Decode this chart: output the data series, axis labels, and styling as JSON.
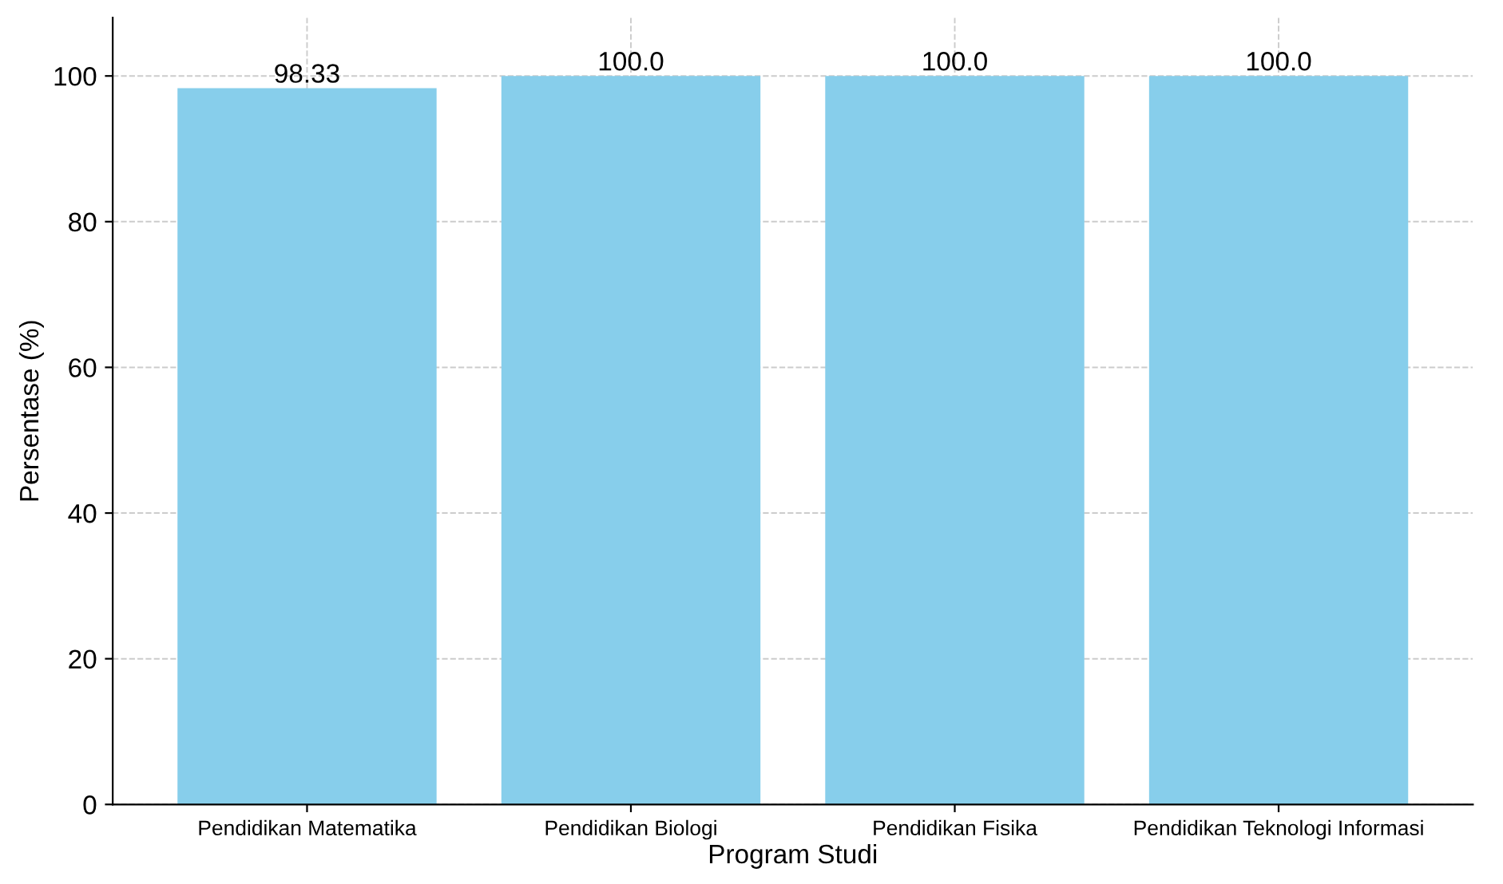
{
  "chart_data": {
    "type": "bar",
    "xlabel": "Program Studi",
    "ylabel": "Persentase (%)",
    "categories": [
      "Pendidikan Matematika",
      "Pendidikan Biologi",
      "Pendidikan Fisika",
      "Pendidikan Teknologi Informasi"
    ],
    "values": [
      98.33,
      100,
      100,
      100
    ],
    "value_labels": [
      "98.33",
      "100.0",
      "100.0",
      "100.0"
    ],
    "color": "#87ceeb",
    "ylim": [
      0,
      108
    ],
    "yticks": [
      0,
      20,
      40,
      60,
      80,
      100
    ],
    "grid": true
  }
}
